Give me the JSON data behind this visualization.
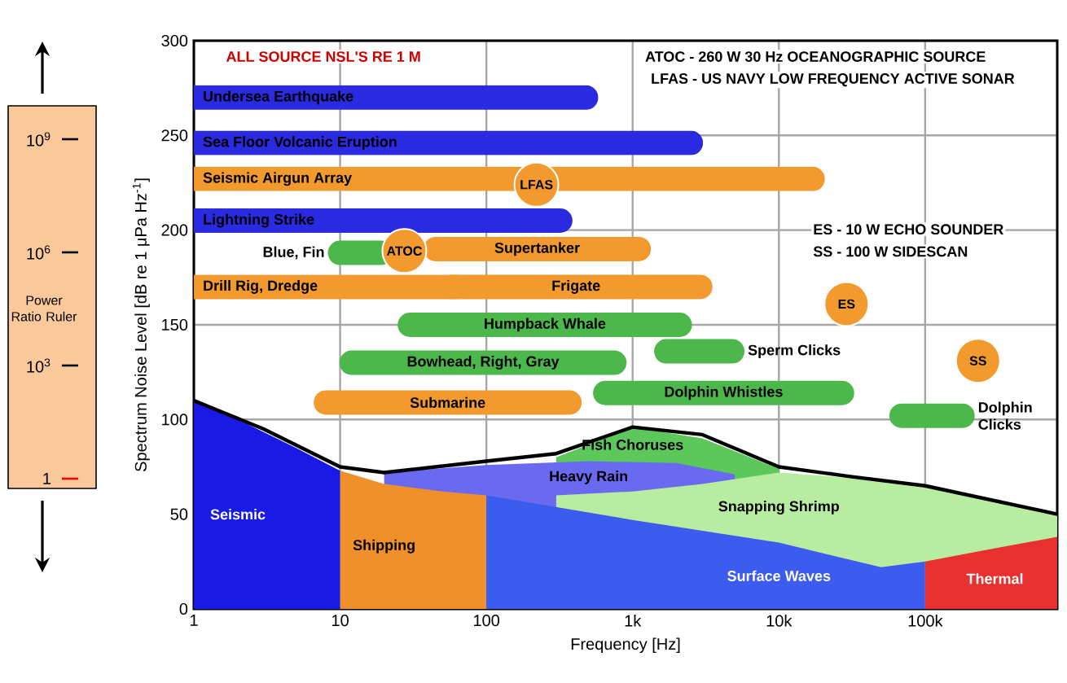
{
  "chart_data": [
    {
      "type": "other",
      "title": "Power Ratio Ruler",
      "annotations": [
        "1",
        "10$^{3}$",
        "10$^{6}$",
        "10$^{9}$"
      ]
    },
    {
      "type": "line",
      "xlabel": "Frequency [Hz]",
      "ylabel": "Spectrum Noise Level [dB re 1 μPa Hz$^{-1}$]",
      "log": "x",
      "grid": true,
      "xlim": [
        1,
        800000
      ],
      "ylim": [
        0,
        300
      ],
      "xticks": [
        1,
        10,
        100,
        {
          "value": 1000,
          "label": "1k"
        },
        {
          "value": 10000,
          "label": "10k"
        },
        {
          "value": 100000,
          "label": "100k"
        }
      ],
      "yticks": [
        0,
        50,
        100,
        150,
        200,
        250,
        300
      ],
      "annotations": [
        "ALL SOURCE NSL'S RE 1 M",
        "ATOC - 260 W 30 Hz OCEANOGRAPHIC SOURCE",
        "LFAS - US NAVY LOW FREQUENCY ACTIVE SONAR",
        "ES - 10 W ECHO SOUNDER",
        "SS - 100 W SIDESCAN"
      ],
      "series": [
        {
          "name": "Fish Choruses",
          "type": "area",
          "color": "#5cc85c",
          "x": [
            300,
            1000,
            3000,
            10000
          ],
          "values": [
            80,
            96,
            90,
            74
          ]
        },
        {
          "name": "Heavy Rain",
          "type": "area",
          "color": "#6a6af0",
          "x": [
            20,
            100,
            500,
            2000,
            5000
          ],
          "values": [
            72,
            76,
            78,
            77,
            71
          ]
        },
        {
          "name": "Snapping Shrimp",
          "type": "area",
          "color": "#b8eca0",
          "x": [
            300,
            1000,
            3000,
            10000,
            50000,
            200000,
            800000
          ],
          "values": [
            60,
            62,
            66,
            72,
            68,
            60,
            50
          ]
        },
        {
          "name": "Seismic",
          "type": "area",
          "color": "#1a1ae6",
          "x": [
            1,
            2,
            5,
            10
          ],
          "values": [
            110,
            100,
            85,
            73
          ]
        },
        {
          "name": "Shipping",
          "type": "area",
          "color": "#f0902a",
          "x": [
            10,
            20,
            50,
            100
          ],
          "values": [
            73,
            66,
            62,
            60
          ]
        },
        {
          "name": "Surface Waves",
          "type": "area",
          "color": "#3c5cf0",
          "x": [
            100,
            1000,
            10000,
            50000,
            100000
          ],
          "values": [
            60,
            47,
            35,
            22,
            25
          ]
        },
        {
          "name": "Thermal",
          "type": "area",
          "color": "#e83030",
          "x": [
            100000,
            300000,
            800000
          ],
          "values": [
            25,
            32,
            38
          ]
        },
        {
          "type": "line",
          "color": "#000000",
          "x": [
            1,
            3,
            10,
            20,
            100,
            300,
            1000,
            3000,
            10000,
            30000,
            100000,
            800000
          ],
          "values": [
            110,
            95,
            75,
            72,
            78,
            82,
            96,
            92,
            75,
            70,
            65,
            50
          ]
        },
        {
          "name": "Undersea Earthquake",
          "type": "line",
          "color": "#2a2ae0",
          "x": [
            1,
            480
          ],
          "values": [
            270,
            270
          ]
        },
        {
          "name": "Sea Floor Volcanic Eruption",
          "type": "line",
          "color": "#2a2ae0",
          "x": [
            1,
            2500
          ],
          "values": [
            246,
            246
          ]
        },
        {
          "name": "Seismic Airgun Array",
          "type": "line",
          "color": "#f39a2e",
          "x": [
            1,
            17000
          ],
          "values": [
            227,
            227
          ]
        },
        {
          "name": "Lightning Strike",
          "type": "line",
          "color": "#2a2ae0",
          "x": [
            1,
            320
          ],
          "values": [
            205,
            205
          ]
        },
        {
          "name": "Blue, Fin",
          "type": "line",
          "color": "#4cb84c",
          "x": [
            10,
            19
          ],
          "values": [
            188,
            188
          ]
        },
        {
          "name": "Supertanker",
          "type": "line",
          "color": "#f39a2e",
          "x": [
            45,
            1100
          ],
          "values": [
            190,
            190
          ]
        },
        {
          "name": "Drill Rig, Dredge",
          "type": "line",
          "color": "#f39a2e",
          "x": [
            1,
            62
          ],
          "values": [
            170,
            170
          ]
        },
        {
          "name": "Frigate",
          "type": "line",
          "color": "#f39a2e",
          "x": [
            58,
            2900
          ],
          "values": [
            170,
            170
          ]
        },
        {
          "name": "Humpback Whale",
          "type": "line",
          "color": "#4cb84c",
          "x": [
            30,
            2100
          ],
          "values": [
            150,
            150
          ]
        },
        {
          "name": "Bowhead, Right, Gray",
          "type": "line",
          "color": "#4cb84c",
          "x": [
            12,
            750
          ],
          "values": [
            130,
            130
          ]
        },
        {
          "name": "Submarine",
          "type": "line",
          "color": "#f39a2e",
          "x": [
            8,
            370
          ],
          "values": [
            109,
            109
          ]
        },
        {
          "name": "Sperm Clicks",
          "type": "line",
          "color": "#4cb84c",
          "x": [
            1700,
            4800
          ],
          "values": [
            136,
            136
          ]
        },
        {
          "name": "Dolphin Whistles",
          "type": "line",
          "color": "#4cb84c",
          "x": [
            650,
            27000
          ],
          "values": [
            114,
            114
          ]
        },
        {
          "name": "Dolphin Clicks",
          "type": "line",
          "color": "#4cb84c",
          "x": [
            69000,
            180000
          ],
          "values": [
            102,
            102
          ]
        },
        {
          "name": "ATOC",
          "type": "scatter",
          "color": "#f39a2e",
          "x": [
            27.5
          ],
          "values": [
            189
          ]
        },
        {
          "name": "LFAS",
          "type": "scatter",
          "color": "#f39a2e",
          "x": [
            220
          ],
          "values": [
            224
          ]
        },
        {
          "name": "ES",
          "type": "scatter",
          "color": "#f39a2e",
          "x": [
            29000
          ],
          "values": [
            161
          ]
        },
        {
          "name": "SS",
          "type": "scatter",
          "color": "#f39a2e",
          "x": [
            230000
          ],
          "values": [
            131
          ]
        }
      ]
    }
  ]
}
